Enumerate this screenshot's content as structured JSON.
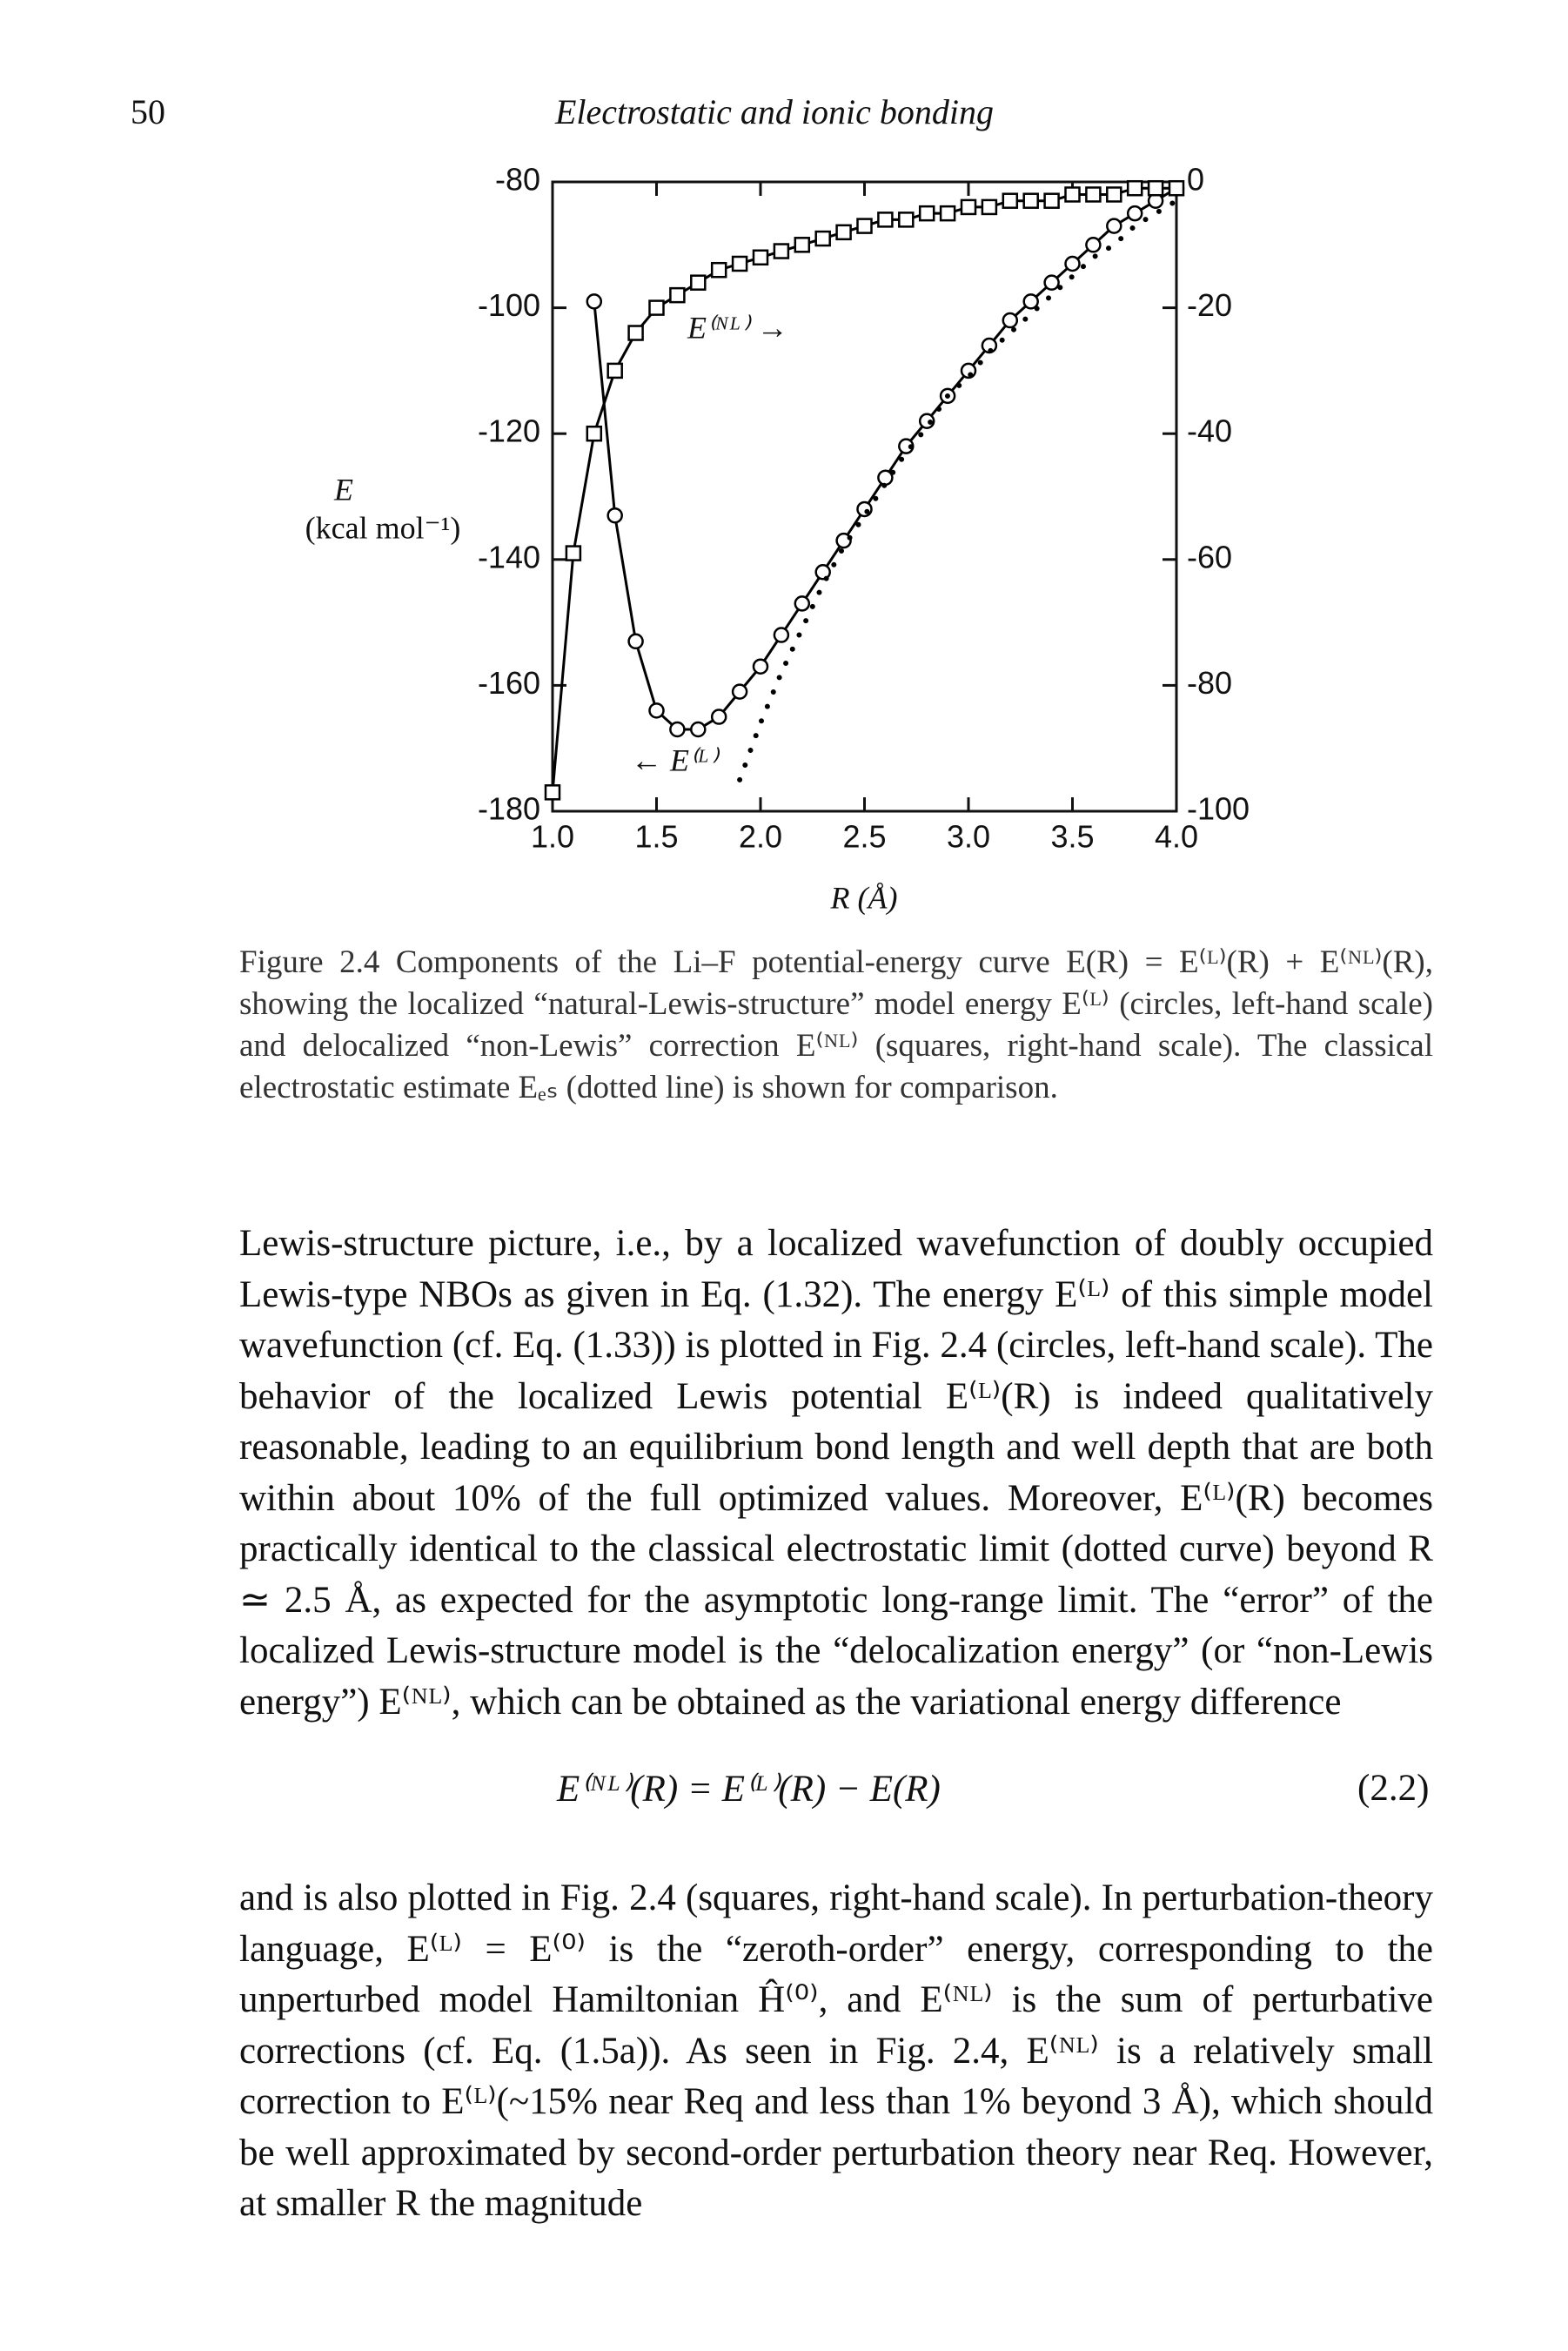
{
  "header": {
    "page_number": "50",
    "running_title": "Electrostatic and ionic bonding"
  },
  "chart_data": {
    "type": "line",
    "y_label": "E",
    "y_label_unit": "(kcal mol⁻¹)",
    "x_label": "R (Å)",
    "x": [
      1.0,
      1.1,
      1.2,
      1.3,
      1.4,
      1.5,
      1.6,
      1.7,
      1.8,
      1.9,
      2.0,
      2.1,
      2.2,
      2.3,
      2.4,
      2.5,
      2.6,
      2.7,
      2.8,
      2.9,
      3.0,
      3.1,
      3.2,
      3.3,
      3.4,
      3.5,
      3.6,
      3.7,
      3.8,
      3.9,
      4.0
    ],
    "xlim": [
      1.0,
      4.0
    ],
    "xticks": [
      {
        "value": 1,
        "label": "1.0"
      },
      1.5,
      {
        "value": 2,
        "label": "2.0"
      },
      2.5,
      {
        "value": 3,
        "label": "3.0"
      },
      3.5,
      {
        "value": 4,
        "label": "4.0"
      }
    ],
    "ylim": [
      -180,
      -80
    ],
    "yticks": [
      -180,
      -160,
      -140,
      -120,
      -100,
      -80
    ],
    "y2lim": [
      -100,
      0
    ],
    "y2ticks": [
      -100,
      -80,
      -60,
      -40,
      -20,
      0
    ],
    "series": [
      {
        "color": "#000000",
        "marker": "circle",
        "dash": "solid",
        "values": [
          null,
          null,
          -99,
          -133,
          -153,
          -164,
          -167,
          -167,
          -165,
          -161,
          -157,
          -152,
          -147,
          -142,
          -137,
          -132,
          -127,
          -122,
          -118,
          -114,
          -110,
          -106,
          -102,
          -99,
          -96,
          -93,
          -90,
          -87,
          -85,
          -83,
          -81
        ]
      },
      {
        "color": "#000000",
        "marker": "square",
        "dash": "solid",
        "axis": "y2",
        "values": [
          -97,
          -59,
          -40,
          -30,
          -24,
          -20,
          -18,
          -16,
          -14,
          -13,
          -12,
          -11,
          -10,
          -9,
          -8,
          -7,
          -6,
          -6,
          -5,
          -5,
          -4,
          -4,
          -3,
          -3,
          -3,
          -2,
          -2,
          -2,
          -1,
          -1,
          -1
        ]
      },
      {
        "color": "#000000",
        "marker": "none",
        "dash": "dotted",
        "values": [
          null,
          null,
          null,
          null,
          null,
          null,
          null,
          null,
          null,
          -175,
          -166,
          -158,
          -151,
          -144,
          -138,
          -133,
          -128,
          -123,
          -119,
          -114,
          -111,
          -107,
          -104,
          -101,
          -98,
          -95,
          -92,
          -90,
          -87,
          -85,
          -83
        ]
      }
    ],
    "annotations": [
      "E⁽ᴺᴸ⁾ →",
      "← E⁽ᴸ⁾"
    ]
  },
  "caption": "Figure 2.4 Components of the Li–F potential-energy curve E(R) = E⁽ᴸ⁾(R) + E⁽ᴺᴸ⁾(R), showing the localized “natural-Lewis-structure” model energy E⁽ᴸ⁾ (circles, left-hand scale) and delocalized “non-Lewis” correction E⁽ᴺᴸ⁾ (squares, right-hand scale). The classical electrostatic estimate Eₑₛ (dotted line) is shown for comparison.",
  "body": {
    "paragraph_1": "Lewis-structure picture, i.e., by a localized wavefunction of doubly occupied Lewis-type NBOs as given in Eq. (1.32). The energy E⁽ᴸ⁾ of this simple model wavefunction (cf. Eq. (1.33)) is plotted in Fig. 2.4 (circles, left-hand scale). The behavior of the localized Lewis potential E⁽ᴸ⁾(R) is indeed qualitatively reasonable, leading to an equilibrium bond length and well depth that are both within about 10% of the full optimized values. Moreover, E⁽ᴸ⁾(R) becomes practically identical to the classical electrostatic limit (dotted curve) beyond R ≃ 2.5 Å, as expected for the asymptotic long-range limit. The “error” of the localized Lewis-structure model is the “delocalization energy” (or “non-Lewis energy”) E⁽ᴺᴸ⁾, which can be obtained as the variational energy difference",
    "equation": "E⁽ᴺᴸ⁾(R) = E⁽ᴸ⁾(R) − E(R)",
    "equation_number": "(2.2)",
    "paragraph_2": "and is also plotted in Fig. 2.4 (squares, right-hand scale). In perturbation-theory language, E⁽ᴸ⁾ = E⁽⁰⁾ is the “zeroth-order” energy, corresponding to the unperturbed model Hamiltonian Ĥ⁽⁰⁾, and E⁽ᴺᴸ⁾ is the sum of perturbative corrections (cf. Eq. (1.5a)). As seen in Fig. 2.4, E⁽ᴺᴸ⁾ is a relatively small correction to E⁽ᴸ⁾(~15% near Req and less than 1% beyond 3 Å), which should be well approximated by second-order perturbation theory near Req. However, at smaller R the magnitude"
  }
}
